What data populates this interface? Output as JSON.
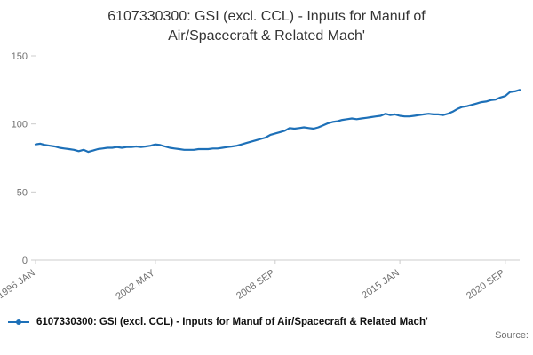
{
  "chart_data": {
    "type": "line",
    "title": "6107330300: GSI (excl. CCL) - Inputs for Manuf of Air/Spacecraft & Related Mach'",
    "xlabel": "",
    "ylabel": "",
    "ylim": [
      0,
      150
    ],
    "y_ticks": [
      0,
      50,
      100,
      150
    ],
    "grid": false,
    "legend_position": "bottom-left",
    "x_ticks": [
      {
        "label": "1996 JAN",
        "index": 0
      },
      {
        "label": "2002 MAY",
        "index": 25
      },
      {
        "label": "2008 SEP",
        "index": 50
      },
      {
        "label": "2015 JAN",
        "index": 76
      },
      {
        "label": "2020 SEP",
        "index": 98
      }
    ],
    "x_start": "1996 JAN",
    "sampling": "quarterly values estimated from plotted monthly line",
    "series": [
      {
        "name": "6107330300: GSI (excl. CCL) - Inputs for Manuf of Air/Spacecraft & Related Mach'",
        "color": "#1d70b8",
        "values": [
          85,
          85.5,
          84.5,
          84,
          83.5,
          82.5,
          82,
          81.5,
          81,
          80,
          81,
          79.5,
          80.5,
          81.5,
          82,
          82.5,
          82.5,
          83,
          82.5,
          83,
          83,
          83.5,
          83,
          83.5,
          84,
          85,
          84.5,
          83.5,
          82.5,
          82,
          81.5,
          81,
          81,
          81,
          81.5,
          81.5,
          81.5,
          82,
          82,
          82.5,
          83,
          83.5,
          84,
          85,
          86,
          87,
          88,
          89,
          90,
          92,
          93,
          94,
          95,
          97,
          96.5,
          97,
          97.5,
          97,
          96.5,
          97.5,
          99,
          100.5,
          101.5,
          102,
          103,
          103.5,
          104,
          103.5,
          104,
          104.5,
          105,
          105.5,
          106,
          107.5,
          106.5,
          107,
          106,
          105.5,
          105.5,
          106,
          106.5,
          107,
          107.5,
          107,
          107,
          106.5,
          107.5,
          109,
          111,
          112.5,
          113,
          114,
          115,
          116,
          116.5,
          117.5,
          118,
          119.5,
          120.5,
          123.5,
          124,
          125
        ]
      }
    ]
  },
  "legend": {
    "label": "6107330300: GSI (excl. CCL) - Inputs for Manuf of Air/Spacecraft & Related Mach'"
  },
  "footer": {
    "source_label": "Source:"
  },
  "colors": {
    "line": "#1d70b8",
    "axis": "#cccccc",
    "tick_label": "#707070",
    "title_text": "#333333"
  }
}
